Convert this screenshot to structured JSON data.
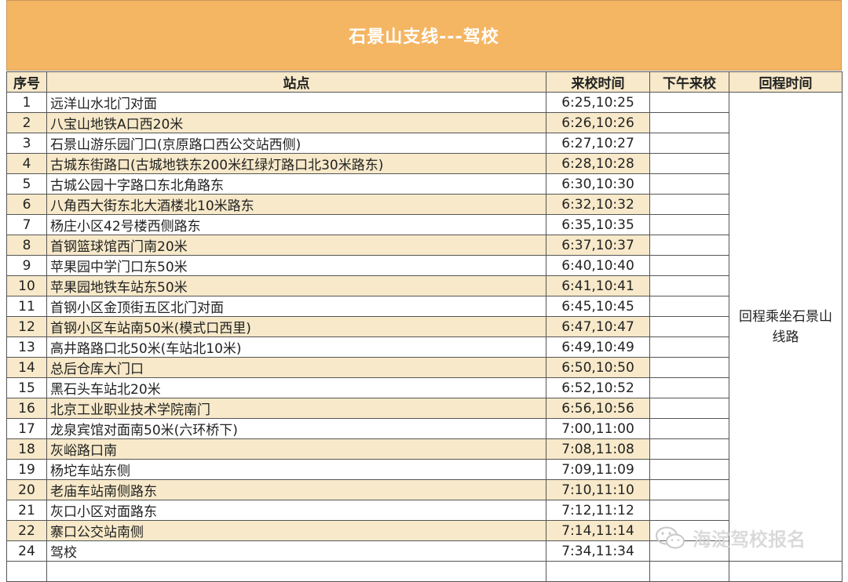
{
  "title": "石景山支线---驾校",
  "headers": {
    "num": "序号",
    "stop": "站点",
    "time": "来校时间",
    "pm": "下午来校",
    "return": "回程时间"
  },
  "return_text": "回程乘坐石景山线路",
  "rows": [
    {
      "num": "1",
      "stop": "远洋山水北门对面",
      "time": "6:25,10:25"
    },
    {
      "num": "2",
      "stop": "八宝山地铁A口西20米",
      "time": "6:26,10:26"
    },
    {
      "num": "3",
      "stop": "石景山游乐园门口(京原路口西公交站西侧)",
      "time": "6:27,10:27"
    },
    {
      "num": "4",
      "stop": "古城东街路口(古城地铁东200米红绿灯路口北30米路东)",
      "time": "6:28,10:28"
    },
    {
      "num": "5",
      "stop": "古城公园十字路口东北角路东",
      "time": "6:30,10:30"
    },
    {
      "num": "6",
      "stop": "八角西大街东北大酒楼北10米路东",
      "time": "6:32,10:32"
    },
    {
      "num": "7",
      "stop": "杨庄小区42号楼西侧路东",
      "time": "6:35,10:35"
    },
    {
      "num": "8",
      "stop": "首钢篮球馆西门南20米",
      "time": "6:37,10:37"
    },
    {
      "num": "9",
      "stop": "苹果园中学门口东50米",
      "time": "6:40,10:40"
    },
    {
      "num": "10",
      "stop": "苹果园地铁车站东50米",
      "time": "6:41,10:41"
    },
    {
      "num": "11",
      "stop": "首钢小区金顶街五区北门对面",
      "time": "6:45,10:45"
    },
    {
      "num": "12",
      "stop": "首钢小区车站南50米(模式口西里)",
      "time": "6:47,10:47"
    },
    {
      "num": "13",
      "stop": "高井路路口北50米(车站北10米)",
      "time": "6:49,10:49"
    },
    {
      "num": "14",
      "stop": "总后仓库大门口",
      "time": "6:50,10:50"
    },
    {
      "num": "15",
      "stop": "黑石头车站北20米",
      "time": "6:52,10:52"
    },
    {
      "num": "16",
      "stop": "北京工业职业技术学院南门",
      "time": "6:56,10:56"
    },
    {
      "num": "17",
      "stop": "龙泉宾馆对面南50米(六环桥下)",
      "time": "7:00,11:00"
    },
    {
      "num": "18",
      "stop": "灰峪路口南",
      "time": "7:08,11:08"
    },
    {
      "num": "19",
      "stop": "杨坨车站东侧",
      "time": "7:09,11:09"
    },
    {
      "num": "20",
      "stop": "老庙车站南侧路东",
      "time": "7:10,11:10"
    },
    {
      "num": "21",
      "stop": "灰口小区对面路东",
      "time": "7:12,11:12"
    },
    {
      "num": "22",
      "stop": "寨口公交站南侧",
      "time": "7:14,11:14"
    },
    {
      "num": "24",
      "stop": "驾校",
      "time": "7:34,11:34"
    },
    {
      "num": "",
      "stop": "",
      "time": ""
    }
  ],
  "watermark": {
    "icon": "wechat-icon",
    "text": "海淀驾校报名"
  }
}
